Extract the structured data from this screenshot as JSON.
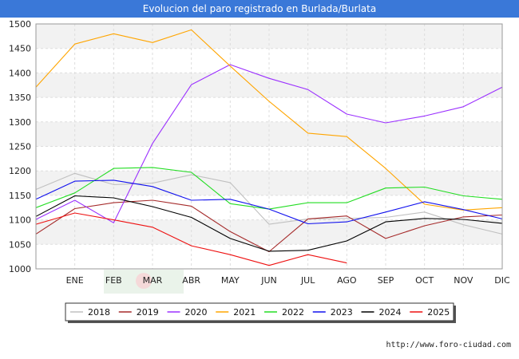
{
  "header": {
    "title": "Evolucion del paro registrado en Burlada/Burlata"
  },
  "footer": {
    "source": "http://www.foro-ciudad.com"
  },
  "chart_data": {
    "type": "line",
    "title": "Evolucion del paro registrado en Burlada/Burlata",
    "xlabel": "",
    "ylabel": "",
    "categories": [
      "",
      "ENE",
      "FEB",
      "MAR",
      "ABR",
      "MAY",
      "JUN",
      "JUL",
      "AGO",
      "SEP",
      "OCT",
      "NOV",
      "DIC"
    ],
    "ylim": [
      1000,
      1500
    ],
    "yticks": [
      1000,
      1050,
      1100,
      1150,
      1200,
      1250,
      1300,
      1350,
      1400,
      1450,
      1500
    ],
    "grid": true,
    "legend": "bottom",
    "series": [
      {
        "name": "2018",
        "color": "#c0c0c0",
        "values": [
          1162,
          1195,
          1172,
          1175,
          1192,
          1176,
          1091,
          1102,
          1103,
          1105,
          1116,
          1090,
          1071
        ]
      },
      {
        "name": "2019",
        "color": "#a52a2a",
        "values": [
          1071,
          1123,
          1135,
          1140,
          1128,
          1076,
          1035,
          1102,
          1108,
          1062,
          1088,
          1106,
          1110
        ]
      },
      {
        "name": "2020",
        "color": "#9b30ff",
        "values": [
          1101,
          1140,
          1094,
          1256,
          1376,
          1417,
          1389,
          1366,
          1316,
          1298,
          1312,
          1331,
          1371
        ]
      },
      {
        "name": "2021",
        "color": "#ffa500",
        "values": [
          1371,
          1459,
          1480,
          1462,
          1488,
          1414,
          1342,
          1277,
          1270,
          1205,
          1132,
          1120,
          1125
        ]
      },
      {
        "name": "2022",
        "color": "#22dd22",
        "values": [
          1125,
          1155,
          1205,
          1207,
          1197,
          1133,
          1122,
          1135,
          1135,
          1165,
          1167,
          1149,
          1142
        ]
      },
      {
        "name": "2023",
        "color": "#1010ee",
        "values": [
          1142,
          1179,
          1181,
          1168,
          1140,
          1142,
          1122,
          1092,
          1096,
          1116,
          1137,
          1121,
          1102
        ]
      },
      {
        "name": "2024",
        "color": "#000000",
        "values": [
          1107,
          1149,
          1145,
          1127,
          1105,
          1062,
          1036,
          1038,
          1057,
          1096,
          1103,
          1101,
          1093
        ]
      },
      {
        "name": "2025",
        "color": "#ee1111",
        "values": [
          1091,
          1114,
          1100,
          1085,
          1047,
          1029,
          1007,
          1029,
          1012,
          null,
          null,
          null,
          null
        ]
      }
    ]
  }
}
